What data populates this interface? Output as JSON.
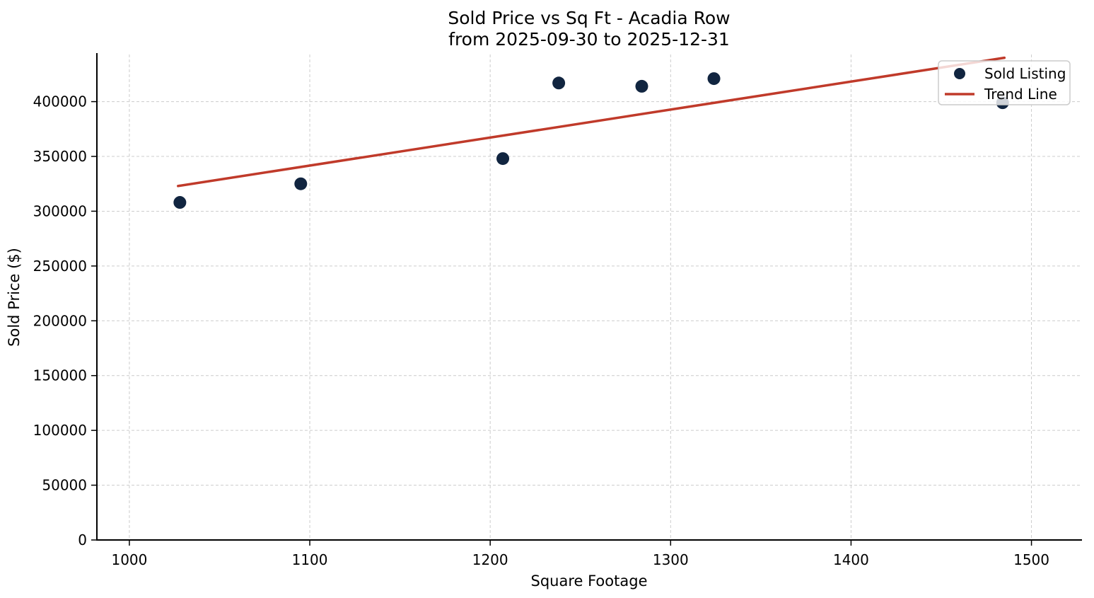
{
  "chart_data": {
    "type": "scatter",
    "title": "Sold Price vs Sq Ft - Acadia Row",
    "subtitle": "from 2025-09-30 to 2025-12-31",
    "xlabel": "Square Footage",
    "ylabel": "Sold Price ($)",
    "xlim": [
      982,
      1528
    ],
    "ylim": [
      0,
      443000
    ],
    "x_ticks": [
      1000,
      1100,
      1200,
      1300,
      1400,
      1500
    ],
    "y_ticks": [
      0,
      50000,
      100000,
      150000,
      200000,
      250000,
      300000,
      350000,
      400000
    ],
    "grid": true,
    "grid_style": "dashed",
    "legend_position": "upper right",
    "colors": {
      "point": "#112540",
      "trend": "#c03a2a",
      "grid": "#cccccc",
      "spine": "#000000",
      "legend_border": "#cccccc",
      "legend_bg": "#ffffff"
    },
    "series": [
      {
        "name": "Sold Listing",
        "kind": "scatter",
        "color": "#112540",
        "points": [
          [
            1028,
            308000
          ],
          [
            1095,
            325000
          ],
          [
            1207,
            348000
          ],
          [
            1238,
            417000
          ],
          [
            1284,
            414000
          ],
          [
            1324,
            421000
          ],
          [
            1484,
            399000
          ]
        ]
      },
      {
        "name": "Trend Line",
        "kind": "line",
        "color": "#c03a2a",
        "points": [
          [
            1027,
            323000
          ],
          [
            1485,
            440000
          ]
        ]
      }
    ]
  }
}
